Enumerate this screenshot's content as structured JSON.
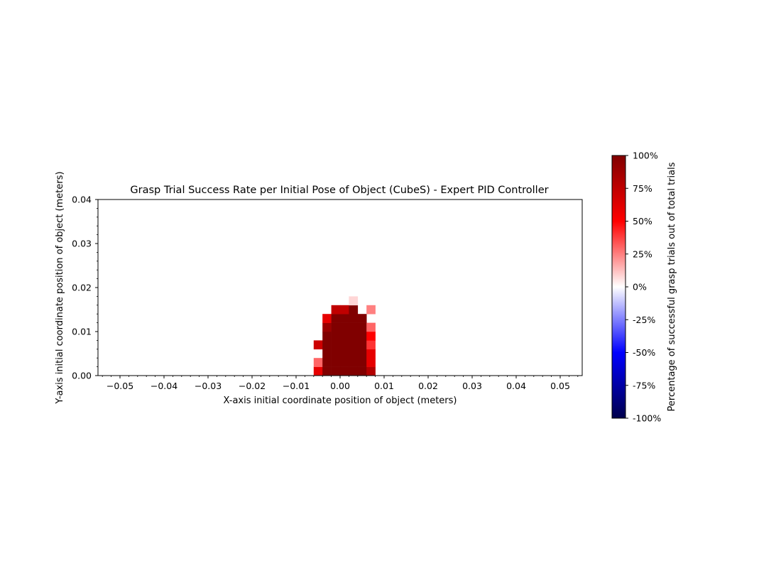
{
  "chart_data": {
    "type": "heatmap",
    "title": "Grasp Trial Success Rate per Initial Pose of Object (CubeS) - Expert PID Controller",
    "xlabel": "X-axis initial coordinate position of object (meters)",
    "ylabel": "Y-axis initial coordinate position of object (meters)",
    "xlim": [
      -0.055,
      0.055
    ],
    "ylim": [
      0.0,
      0.04
    ],
    "x_ticks": [
      -0.05,
      -0.04,
      -0.03,
      -0.02,
      -0.01,
      0.0,
      0.01,
      0.02,
      0.03,
      0.04,
      0.05
    ],
    "x_tick_labels": [
      "−0.05",
      "−0.04",
      "−0.03",
      "−0.02",
      "−0.01",
      "0.00",
      "0.01",
      "0.02",
      "0.03",
      "0.04",
      "0.05"
    ],
    "y_ticks": [
      0.0,
      0.01,
      0.02,
      0.03,
      0.04
    ],
    "y_tick_labels": [
      "0.00",
      "0.01",
      "0.02",
      "0.03",
      "0.04"
    ],
    "cell_size": 0.002,
    "colormap": "seismic",
    "cells": [
      {
        "x": -0.006,
        "y": 0.0,
        "value": 60
      },
      {
        "x": -0.004,
        "y": 0.0,
        "value": 100
      },
      {
        "x": -0.002,
        "y": 0.0,
        "value": 100
      },
      {
        "x": 0.0,
        "y": 0.0,
        "value": 100
      },
      {
        "x": 0.002,
        "y": 0.0,
        "value": 100
      },
      {
        "x": 0.004,
        "y": 0.0,
        "value": 100
      },
      {
        "x": 0.006,
        "y": 0.0,
        "value": 80
      },
      {
        "x": -0.006,
        "y": 0.002,
        "value": 30
      },
      {
        "x": -0.004,
        "y": 0.002,
        "value": 100
      },
      {
        "x": -0.002,
        "y": 0.002,
        "value": 100
      },
      {
        "x": 0.0,
        "y": 0.002,
        "value": 100
      },
      {
        "x": 0.002,
        "y": 0.002,
        "value": 100
      },
      {
        "x": 0.004,
        "y": 0.002,
        "value": 100
      },
      {
        "x": 0.006,
        "y": 0.002,
        "value": 60
      },
      {
        "x": -0.004,
        "y": 0.004,
        "value": 100
      },
      {
        "x": -0.002,
        "y": 0.004,
        "value": 100
      },
      {
        "x": 0.0,
        "y": 0.004,
        "value": 100
      },
      {
        "x": 0.002,
        "y": 0.004,
        "value": 100
      },
      {
        "x": 0.004,
        "y": 0.004,
        "value": 100
      },
      {
        "x": 0.006,
        "y": 0.004,
        "value": 60
      },
      {
        "x": -0.006,
        "y": 0.006,
        "value": 70
      },
      {
        "x": -0.004,
        "y": 0.006,
        "value": 100
      },
      {
        "x": -0.002,
        "y": 0.006,
        "value": 100
      },
      {
        "x": 0.0,
        "y": 0.006,
        "value": 100
      },
      {
        "x": 0.002,
        "y": 0.006,
        "value": 100
      },
      {
        "x": 0.004,
        "y": 0.006,
        "value": 100
      },
      {
        "x": 0.006,
        "y": 0.006,
        "value": 40
      },
      {
        "x": -0.004,
        "y": 0.008,
        "value": 100
      },
      {
        "x": -0.002,
        "y": 0.008,
        "value": 100
      },
      {
        "x": 0.0,
        "y": 0.008,
        "value": 100
      },
      {
        "x": 0.002,
        "y": 0.008,
        "value": 100
      },
      {
        "x": 0.004,
        "y": 0.008,
        "value": 100
      },
      {
        "x": 0.006,
        "y": 0.008,
        "value": 50
      },
      {
        "x": -0.004,
        "y": 0.01,
        "value": 90
      },
      {
        "x": -0.002,
        "y": 0.01,
        "value": 100
      },
      {
        "x": 0.0,
        "y": 0.01,
        "value": 100
      },
      {
        "x": 0.002,
        "y": 0.01,
        "value": 100
      },
      {
        "x": 0.004,
        "y": 0.01,
        "value": 100
      },
      {
        "x": 0.006,
        "y": 0.01,
        "value": 30
      },
      {
        "x": -0.004,
        "y": 0.012,
        "value": 60
      },
      {
        "x": -0.002,
        "y": 0.012,
        "value": 100
      },
      {
        "x": 0.0,
        "y": 0.012,
        "value": 100
      },
      {
        "x": 0.002,
        "y": 0.012,
        "value": 100
      },
      {
        "x": 0.004,
        "y": 0.012,
        "value": 100
      },
      {
        "x": -0.002,
        "y": 0.014,
        "value": 75
      },
      {
        "x": 0.0,
        "y": 0.014,
        "value": 75
      },
      {
        "x": 0.002,
        "y": 0.014,
        "value": 100
      },
      {
        "x": 0.006,
        "y": 0.014,
        "value": 25
      },
      {
        "x": 0.002,
        "y": 0.016,
        "value": 8
      }
    ],
    "colorbar": {
      "label": "Percentage of successful grasp trials out of total trials",
      "range": [
        -100,
        100
      ],
      "ticks": [
        100,
        75,
        50,
        25,
        0,
        -25,
        -50,
        -75,
        -100
      ],
      "tick_labels": [
        "100%",
        "75%",
        "50%",
        "25%",
        "0%",
        "-25%",
        "-50%",
        "-75%",
        "-100%"
      ]
    },
    "grid": false,
    "legend": "none"
  }
}
